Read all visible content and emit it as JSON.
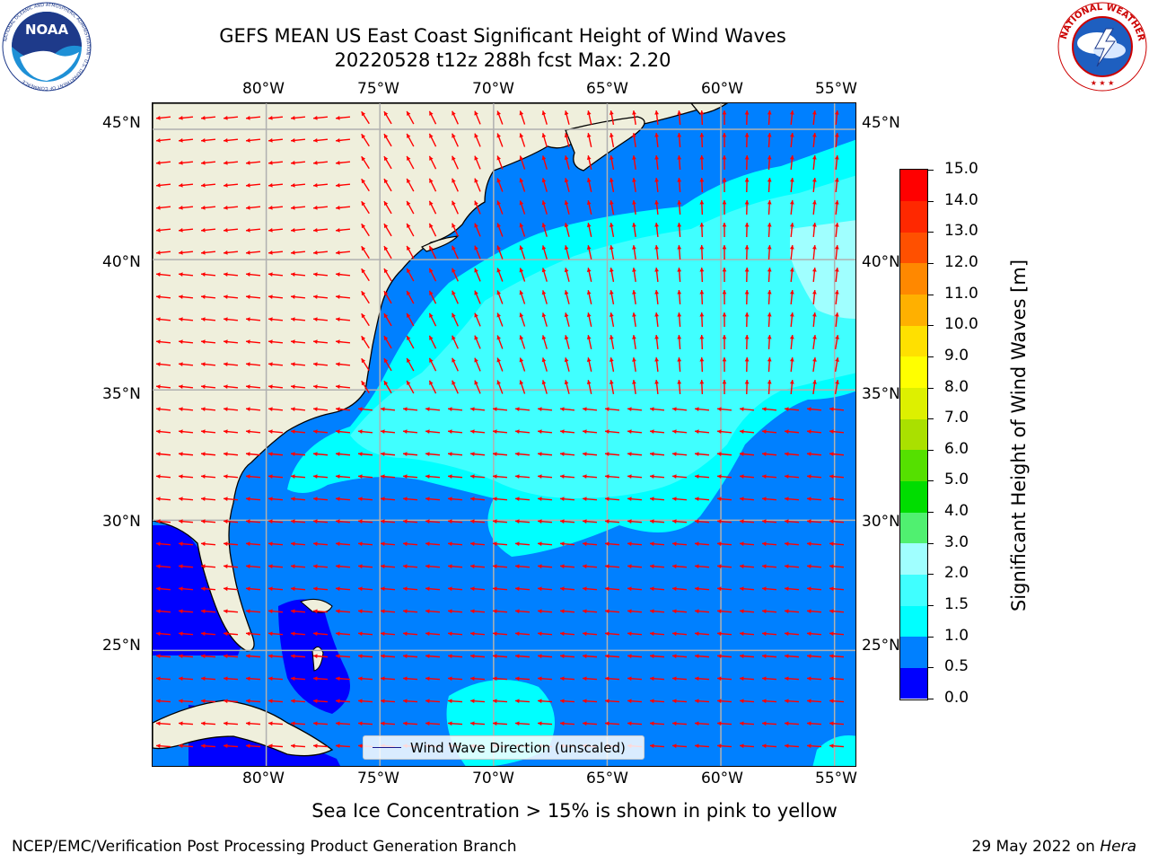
{
  "header": {
    "title_line1": "GEFS MEAN US East Coast Significant Height of Wind Waves",
    "title_line2": "20220528 t12z 288h fcst   Max: 2.20",
    "noaa_logo_text": "NOAA",
    "noaa_logo_ring_text": "NATIONAL OCEANIC AND ATMOSPHERIC ADMINISTRATION · U.S. DEPARTMENT OF COMMERCE",
    "nws_logo_ring_text": "NATIONAL WEATHER SERVICE"
  },
  "map": {
    "lon_range": [
      -85,
      -54
    ],
    "lat_range": [
      20.5,
      46
    ],
    "lon_ticks": [
      "80°W",
      "75°W",
      "70°W",
      "65°W",
      "60°W",
      "55°W"
    ],
    "lat_ticks": [
      "45°N",
      "40°N",
      "35°N",
      "30°N",
      "25°N"
    ],
    "colors": {
      "land": "#efefdc",
      "band_0_0_5": "#0000ff",
      "band_0_5_1_0": "#0080ff",
      "band_1_0_1_5": "#00ffff",
      "band_1_5_2_0": "#40ffff",
      "band_2_0_3_0": "#a0ffff",
      "arrow": "#ff0000",
      "grid": "#b0b0b0"
    },
    "legend_label": "Wind Wave Direction (unscaled)"
  },
  "colorbar": {
    "label": "Significant Height of Wind Waves [m]",
    "ticks": [
      "0.0",
      "0.5",
      "1.0",
      "1.5",
      "2.0",
      "3.0",
      "4.0",
      "5.0",
      "6.0",
      "7.0",
      "8.0",
      "9.0",
      "10.0",
      "11.0",
      "12.0",
      "13.0",
      "14.0",
      "15.0"
    ],
    "colors": [
      "#0000ff",
      "#0080ff",
      "#00ffff",
      "#40ffff",
      "#a0ffff",
      "#50f070",
      "#00dd00",
      "#55e000",
      "#aae000",
      "#ddf000",
      "#ffff00",
      "#ffe000",
      "#ffb000",
      "#ff8800",
      "#ff5000",
      "#ff2800",
      "#ff0000"
    ]
  },
  "footnote": "Sea Ice Concentration > 15% is shown in pink to yellow",
  "footer": {
    "org": "NCEP/EMC/Verification Post Processing Product Generation Branch",
    "date": "29 May 2022 on",
    "host": "Hera"
  }
}
